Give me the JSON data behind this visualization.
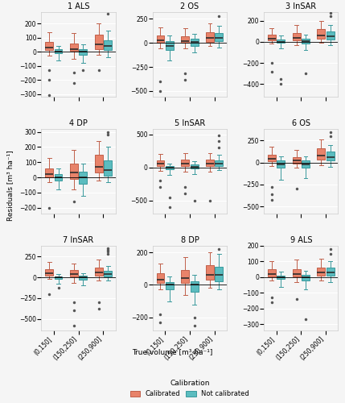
{
  "panels": [
    {
      "title": "1 ALS",
      "row": 0,
      "col": 0,
      "ylim": [
        -320,
        280
      ],
      "yticks": [
        -300,
        -200,
        -100,
        0,
        100,
        200
      ],
      "calibrated": [
        [
          -30,
          10,
          30,
          70,
          140
        ],
        [
          -50,
          5,
          20,
          60,
          130
        ],
        [
          -20,
          20,
          50,
          120,
          200
        ]
      ],
      "not_calibrated": [
        [
          -60,
          -10,
          0,
          15,
          40
        ],
        [
          -80,
          -20,
          0,
          20,
          50
        ],
        [
          -40,
          10,
          40,
          80,
          150
        ]
      ],
      "cal_outliers": [
        [
          -130,
          -200,
          -310
        ],
        [
          -150,
          -220
        ],
        [
          -130
        ]
      ],
      "ncal_outliers": [
        [],
        [
          -130
        ],
        [
          270
        ]
      ]
    },
    {
      "title": "2 OS",
      "row": 0,
      "col": 1,
      "ylim": [
        -560,
        320
      ],
      "yticks": [
        -500,
        -250,
        0,
        250
      ],
      "calibrated": [
        [
          -60,
          0,
          30,
          80,
          160
        ],
        [
          -60,
          0,
          20,
          70,
          150
        ],
        [
          -30,
          10,
          50,
          110,
          200
        ]
      ],
      "not_calibrated": [
        [
          -180,
          -70,
          -30,
          20,
          80
        ],
        [
          -100,
          -30,
          10,
          40,
          90
        ],
        [
          -50,
          15,
          50,
          100,
          180
        ]
      ],
      "cal_outliers": [
        [
          -400,
          -500
        ],
        [
          -320,
          -380
        ],
        []
      ],
      "ncal_outliers": [
        [],
        [],
        [
          280
        ]
      ]
    },
    {
      "title": "3 InSAR",
      "row": 0,
      "col": 2,
      "ylim": [
        -520,
        280
      ],
      "yticks": [
        -400,
        -200,
        0,
        200
      ],
      "calibrated": [
        [
          -20,
          10,
          30,
          70,
          130
        ],
        [
          -30,
          15,
          40,
          80,
          160
        ],
        [
          -10,
          30,
          60,
          120,
          200
        ]
      ],
      "not_calibrated": [
        [
          -60,
          -10,
          0,
          20,
          60
        ],
        [
          -80,
          -20,
          5,
          30,
          70
        ],
        [
          -30,
          20,
          50,
          100,
          160
        ]
      ],
      "cal_outliers": [
        [
          -200,
          -280
        ],
        [],
        []
      ],
      "ncal_outliers": [
        [
          -350,
          -400
        ],
        [
          -300
        ],
        [
          240,
          270
        ]
      ]
    },
    {
      "title": "4 DP",
      "row": 1,
      "col": 0,
      "ylim": [
        -240,
        320
      ],
      "yticks": [
        -200,
        -100,
        0,
        100,
        200,
        300
      ],
      "calibrated": [
        [
          -30,
          0,
          20,
          60,
          130
        ],
        [
          -80,
          -10,
          30,
          90,
          180
        ],
        [
          -20,
          30,
          70,
          150,
          240
        ]
      ],
      "not_calibrated": [
        [
          -80,
          -20,
          0,
          20,
          60
        ],
        [
          -120,
          -40,
          0,
          40,
          90
        ],
        [
          -30,
          10,
          50,
          110,
          200
        ]
      ],
      "cal_outliers": [
        [
          -200
        ],
        [
          -160
        ],
        []
      ],
      "ncal_outliers": [
        [],
        [],
        [
          280,
          300
        ]
      ]
    },
    {
      "title": "5 InSAR",
      "row": 1,
      "col": 1,
      "ylim": [
        -700,
        580
      ],
      "yticks": [
        -500,
        0,
        500
      ],
      "calibrated": [
        [
          -50,
          20,
          60,
          110,
          200
        ],
        [
          -70,
          20,
          60,
          120,
          210
        ],
        [
          -60,
          20,
          60,
          120,
          220
        ]
      ],
      "not_calibrated": [
        [
          -120,
          -30,
          0,
          20,
          60
        ],
        [
          -100,
          -20,
          10,
          40,
          90
        ],
        [
          -40,
          20,
          60,
          110,
          190
        ]
      ],
      "cal_outliers": [
        [
          -200,
          -300
        ],
        [
          -300,
          -400
        ],
        [
          -500
        ]
      ],
      "ncal_outliers": [
        [
          -450,
          -600
        ],
        [
          -500
        ],
        [
          300,
          400,
          480
        ]
      ]
    },
    {
      "title": "6 OS",
      "row": 1,
      "col": 2,
      "ylim": [
        -580,
        380
      ],
      "yticks": [
        -500,
        -250,
        0,
        250
      ],
      "calibrated": [
        [
          -40,
          10,
          40,
          90,
          180
        ],
        [
          -60,
          -10,
          20,
          60,
          140
        ],
        [
          -30,
          30,
          80,
          160,
          260
        ]
      ],
      "not_calibrated": [
        [
          -200,
          -60,
          -20,
          20,
          70
        ],
        [
          -180,
          -60,
          -20,
          20,
          70
        ],
        [
          -50,
          20,
          60,
          120,
          200
        ]
      ],
      "cal_outliers": [
        [
          -280,
          -360,
          -420
        ],
        [
          -300
        ],
        []
      ],
      "ncal_outliers": [
        [],
        [],
        [
          300,
          340
        ]
      ]
    },
    {
      "title": "7 InSAR",
      "row": 2,
      "col": 0,
      "ylim": [
        -640,
        380
      ],
      "yticks": [
        -500,
        -250,
        0,
        250
      ],
      "calibrated": [
        [
          -20,
          20,
          50,
          100,
          190
        ],
        [
          -70,
          10,
          40,
          90,
          170
        ],
        [
          -40,
          20,
          60,
          120,
          210
        ]
      ],
      "not_calibrated": [
        [
          -80,
          -20,
          0,
          10,
          40
        ],
        [
          -100,
          -30,
          0,
          20,
          50
        ],
        [
          -40,
          10,
          40,
          80,
          140
        ]
      ],
      "cal_outliers": [
        [
          -200
        ],
        [
          -300,
          -400,
          -580
        ],
        [
          -300,
          -380
        ]
      ],
      "ncal_outliers": [
        [
          -130
        ],
        [],
        [
          280,
          310,
          330,
          350
        ]
      ]
    },
    {
      "title": "8 DP",
      "row": 2,
      "col": 1,
      "ylim": [
        -280,
        240
      ],
      "yticks": [
        -200,
        0,
        200
      ],
      "calibrated": [
        [
          -30,
          10,
          30,
          70,
          130
        ],
        [
          -60,
          10,
          40,
          90,
          170
        ],
        [
          -20,
          30,
          60,
          120,
          200
        ]
      ],
      "not_calibrated": [
        [
          -100,
          -30,
          0,
          15,
          50
        ],
        [
          -120,
          -40,
          0,
          20,
          60
        ],
        [
          -30,
          20,
          60,
          110,
          190
        ]
      ],
      "cal_outliers": [
        [
          -180,
          -230
        ],
        [],
        []
      ],
      "ncal_outliers": [
        [],
        [
          -200,
          -250
        ],
        [
          220
        ]
      ]
    },
    {
      "title": "9 ALS",
      "row": 2,
      "col": 2,
      "ylim": [
        -340,
        200
      ],
      "yticks": [
        -300,
        -200,
        -100,
        0,
        100,
        200
      ],
      "calibrated": [
        [
          -20,
          5,
          20,
          50,
          100
        ],
        [
          -30,
          5,
          20,
          50,
          110
        ],
        [
          -20,
          10,
          30,
          60,
          120
        ]
      ],
      "not_calibrated": [
        [
          -60,
          -10,
          0,
          10,
          35
        ],
        [
          -80,
          -20,
          0,
          15,
          40
        ],
        [
          -30,
          10,
          30,
          60,
          100
        ]
      ],
      "cal_outliers": [
        [
          -130,
          -160
        ],
        [
          -140
        ],
        []
      ],
      "ncal_outliers": [
        [],
        [
          -270
        ],
        [
          150,
          180,
          210
        ]
      ]
    }
  ],
  "cal_color": "#E8836A",
  "ncal_color": "#5BBCBF",
  "cal_edge": "#C0604A",
  "ncal_edge": "#3A9A9D",
  "median_color": "#2C2C2C",
  "outlier_color": "#555555",
  "groups": [
    "(0,150]",
    "(150,250]",
    "(250,900]"
  ],
  "ylabel": "Residuals [m³ ha⁻¹]",
  "xlabel": "True volume [m³ ha⁻¹]",
  "legend_title": "Calibration",
  "legend_cal": "Calibrated",
  "legend_ncal": "Not calibrated",
  "background_color": "#F5F5F5",
  "grid_color": "#FFFFFF",
  "box_width": 0.32,
  "flier_size": 2.5
}
